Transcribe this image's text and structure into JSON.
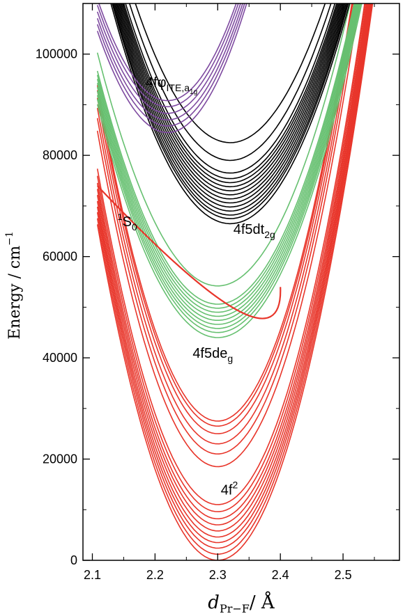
{
  "chart_data": {
    "type": "line",
    "xlabel_var": "d",
    "xlabel_sub": "Pr−F",
    "xlabel_unit": "/ Å",
    "ylabel": "Energy / cm",
    "ylabel_sup": "−1",
    "xlim": [
      2.085,
      2.59
    ],
    "ylim": [
      0,
      110000
    ],
    "x_ticks": [
      2.1,
      2.2,
      2.3,
      2.4,
      2.5
    ],
    "x_tick_labels": [
      "2.1",
      "2.2",
      "2.3",
      "2.4",
      "2.5"
    ],
    "y_ticks": [
      0,
      20000,
      40000,
      60000,
      80000,
      100000
    ],
    "y_tick_labels": [
      "0",
      "20000",
      "40000",
      "60000",
      "80000",
      "100000"
    ],
    "x_range": [
      2.108,
      2.565
    ],
    "groups": [
      {
        "label": "4f²",
        "color": "#e8352a",
        "min_x": 2.3,
        "curvature": 1800000,
        "minima": [
          0,
          1200,
          2400,
          3500,
          4600,
          5800,
          7000,
          8200,
          9600,
          11000,
          18500,
          21000,
          23000,
          25000,
          26500,
          27500
        ]
      },
      {
        "label": "4f5d e_g",
        "color": "#66c070",
        "min_x": 2.3,
        "curvature": 1250000,
        "minima": [
          44000,
          45000,
          45800,
          46600,
          47400,
          48200,
          49000,
          49800,
          50600,
          54200
        ]
      },
      {
        "label": "4f5d t_2g",
        "color": "#000000",
        "min_x": 2.32,
        "curvature": 1200000,
        "minima": [
          66500,
          67500,
          68200,
          69000,
          69800,
          70600,
          71400,
          72200,
          73000,
          73800,
          74600,
          75400,
          76500,
          79000,
          82500
        ]
      },
      {
        "label": "4fφ ITE,a1g",
        "color": "#7e4aa0",
        "min_x": 2.22,
        "curvature": 1600000,
        "minima": [
          84500,
          85800,
          87000,
          88300,
          89600,
          90800
        ]
      }
    ],
    "special_curve": {
      "label": "¹S₀",
      "color": "#e8352a",
      "start": [
        2.108,
        74000
      ],
      "end": [
        2.4,
        54000
      ],
      "min": [
        2.33,
        49500
      ]
    },
    "annotations": [
      {
        "id": "ite",
        "base": "4fφ",
        "sub": "ITE,a",
        "subsub": "1g",
        "x": 2.185,
        "y": 93500
      },
      {
        "id": "t2g",
        "base": "4f5dt",
        "sub": "2g",
        "x": 2.325,
        "y": 64500
      },
      {
        "id": "s0",
        "sup": "1",
        "base": "S",
        "sub": "0",
        "x": 2.14,
        "y": 66000
      },
      {
        "id": "eg",
        "base": "4f5de",
        "sub": "g",
        "x": 2.26,
        "y": 40000
      },
      {
        "id": "f2",
        "base": "4f",
        "sup": "2",
        "x": 2.305,
        "y": 13000
      }
    ]
  }
}
